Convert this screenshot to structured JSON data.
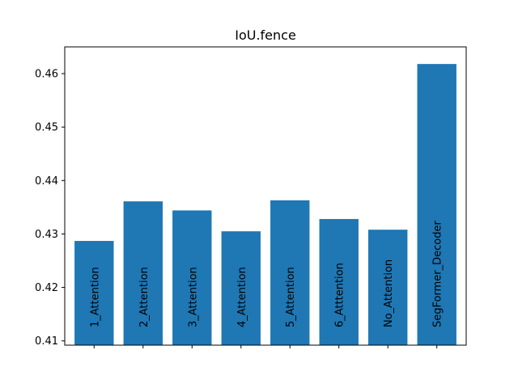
{
  "chart_data": {
    "type": "bar",
    "title": "IoU.fence",
    "xlabel": "",
    "ylabel": "",
    "categories": [
      "1_Attention",
      "2_Attention",
      "3_Attention",
      "4_Attention",
      "5_Attention",
      "6_Atttention",
      "No_Attention",
      "SegFormer_Decoder"
    ],
    "values": [
      0.4287,
      0.4361,
      0.4344,
      0.4305,
      0.4363,
      0.4328,
      0.4308,
      0.4618
    ],
    "ylim": [
      0.4092,
      0.465
    ],
    "yticks": [
      "0.41",
      "0.42",
      "0.43",
      "0.44",
      "0.45",
      "0.46"
    ],
    "bar_color": "#1f77b4",
    "grid": false,
    "legend": false,
    "bar_labels_inside_rotated": true
  }
}
